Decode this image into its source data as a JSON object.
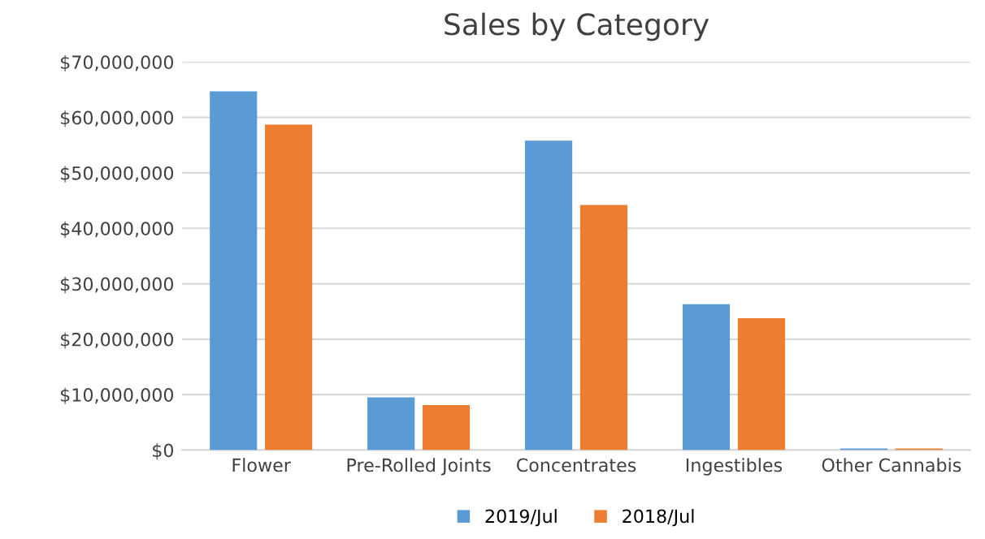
{
  "chart_data": {
    "type": "bar",
    "title": "Sales by Category",
    "categories": [
      "Flower",
      "Pre-Rolled Joints",
      "Concentrates",
      "Ingestibles",
      "Other Cannabis"
    ],
    "series": [
      {
        "name": "2019/Jul",
        "color": "#5b9bd5",
        "values": [
          64700000,
          9500000,
          55800000,
          26300000,
          300000
        ]
      },
      {
        "name": "2018/Jul",
        "color": "#ed7d31",
        "values": [
          58700000,
          8100000,
          44200000,
          23800000,
          300000
        ]
      }
    ],
    "ylim": [
      0,
      70000000
    ],
    "yticks": [
      {
        "value": 0,
        "label": "$0"
      },
      {
        "value": 10000000,
        "label": "$10,000,000"
      },
      {
        "value": 20000000,
        "label": "$20,000,000"
      },
      {
        "value": 30000000,
        "label": "$30,000,000"
      },
      {
        "value": 40000000,
        "label": "$40,000,000"
      },
      {
        "value": 50000000,
        "label": "$50,000,000"
      },
      {
        "value": 60000000,
        "label": "$60,000,000"
      },
      {
        "value": 70000000,
        "label": "$70,000,000"
      }
    ],
    "grid": "y",
    "legend": "bottom"
  }
}
